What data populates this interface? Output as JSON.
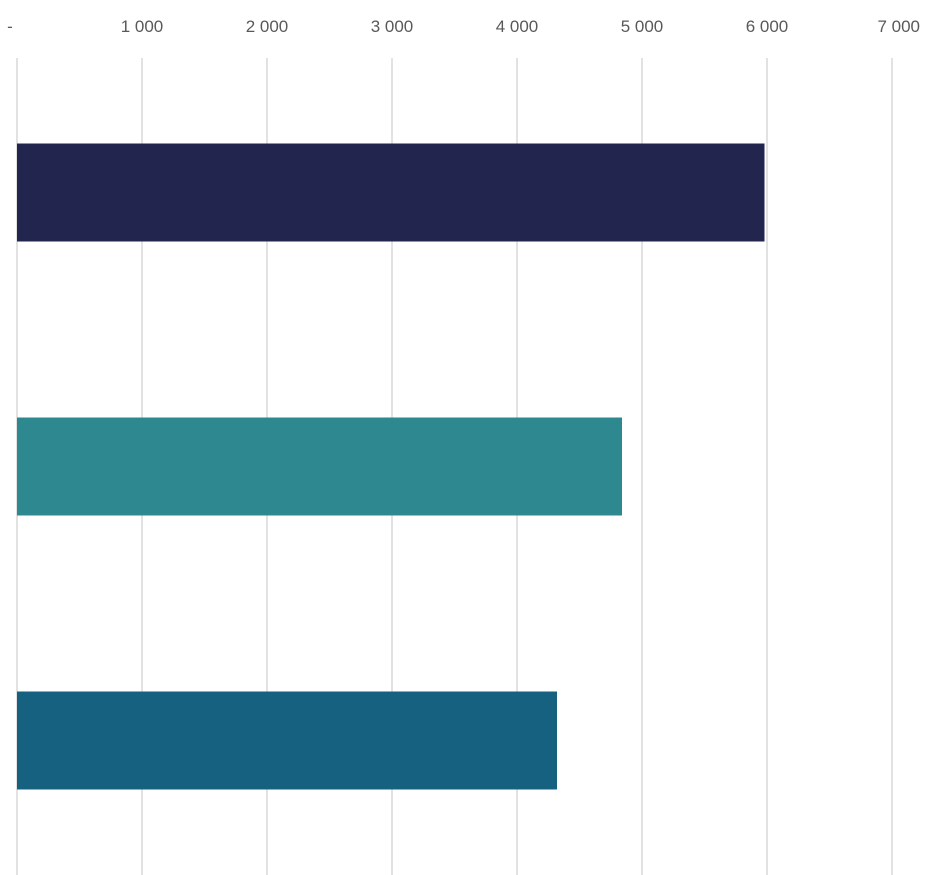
{
  "chart_data": {
    "type": "bar",
    "orientation": "horizontal",
    "title": "",
    "xlabel": "",
    "ylabel": "",
    "categories": [
      "",
      "",
      ""
    ],
    "values": [
      5980,
      4840,
      4320
    ],
    "colors": [
      "#22264f",
      "#2e8890",
      "#176180"
    ],
    "xlim": [
      0,
      7000
    ],
    "x_ticks": [
      {
        "value": 0,
        "label": "-"
      },
      {
        "value": 1000,
        "label": "1 000"
      },
      {
        "value": 2000,
        "label": "2 000"
      },
      {
        "value": 3000,
        "label": "3 000"
      },
      {
        "value": 4000,
        "label": "4 000"
      },
      {
        "value": 5000,
        "label": "5 000"
      },
      {
        "value": 6000,
        "label": "6 000"
      },
      {
        "value": 7000,
        "label": "7 000"
      }
    ],
    "grid": true,
    "x_axis_position": "top",
    "legend": "none"
  }
}
